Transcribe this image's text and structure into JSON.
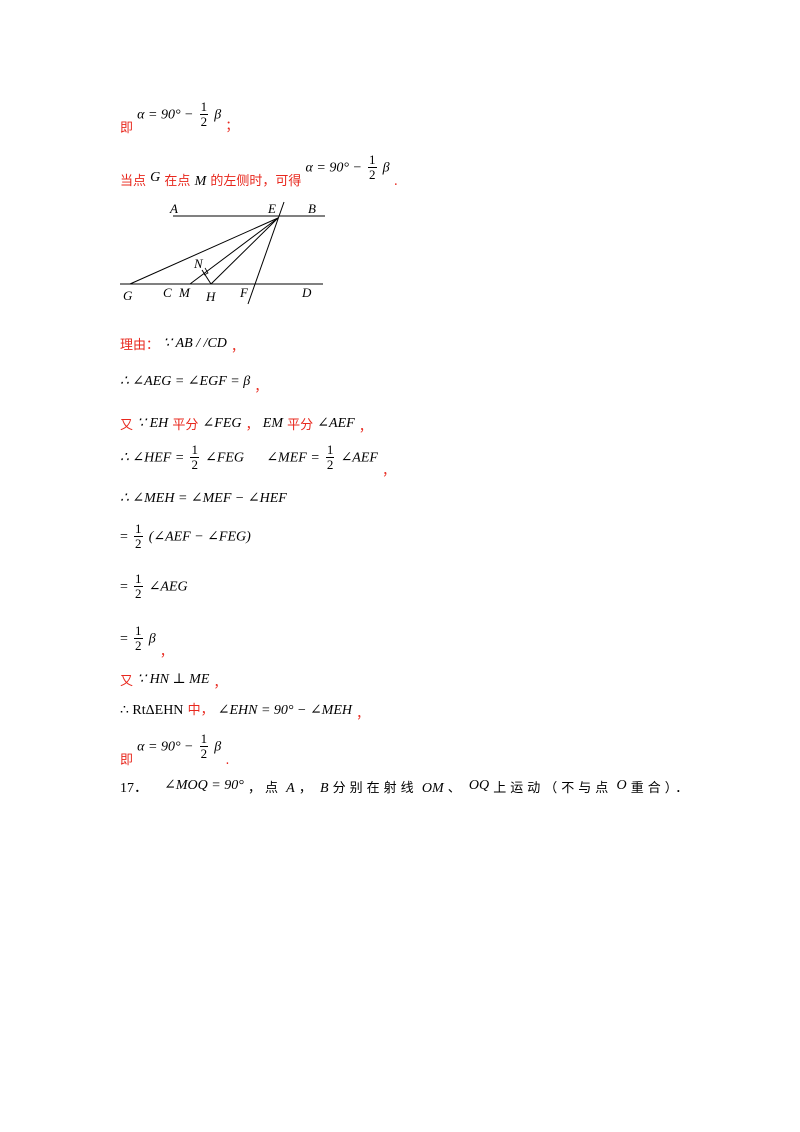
{
  "lines": {
    "l1": {
      "prefix": "即",
      "lhs": "α = 90° −",
      "num": "1",
      "den": "2",
      "var": "β",
      "suffix": "；"
    },
    "l2": {
      "t1": "当点",
      "g": "G",
      "t2": "在点",
      "m": "M",
      "t3": "的左侧时，可得",
      "lhs": "α = 90° −",
      "num": "1",
      "den": "2",
      "var": "β",
      "suffix": "."
    },
    "l3": {
      "prefix": "理由：",
      "expr": "∵ AB / /CD",
      "suffix": "，"
    },
    "l4": {
      "expr": "∴ ∠AEG = ∠EGF = β",
      "suffix": "，"
    },
    "l5": {
      "t1": "又",
      "e1": "∵ EH",
      "t2": "平分",
      "e2": "∠FEG",
      "t3": "，",
      "e3": "EM",
      "t4": "平分",
      "e4": "∠AEF",
      "t5": "，"
    },
    "l6": {
      "a": "∴ ∠HEF =",
      "n1": "1",
      "d1": "2",
      "b": "∠FEG",
      "c": "∠MEF =",
      "n2": "1",
      "d2": "2",
      "e": "∠AEF",
      "suffix": "，"
    },
    "l7": {
      "expr": "∴ ∠MEH = ∠MEF − ∠HEF"
    },
    "l8": {
      "pre": "=",
      "num": "1",
      "den": "2",
      "expr": "(∠AEF − ∠FEG)"
    },
    "l9": {
      "pre": "=",
      "num": "1",
      "den": "2",
      "expr": "∠AEG"
    },
    "l10": {
      "pre": "=",
      "num": "1",
      "den": "2",
      "expr": "β",
      "suffix": "，"
    },
    "l11": {
      "t1": "又",
      "expr": "∵ HN ⊥ ME",
      "suffix": "，"
    },
    "l12": {
      "a": "∴ RtΔEHN",
      "t": "中，",
      "b": "∠EHN = 90° − ∠MEH",
      "suffix": "，"
    },
    "l13": {
      "prefix": "即",
      "lhs": "α = 90° −",
      "num": "1",
      "den": "2",
      "var": "β",
      "suffix": "."
    },
    "l14": {
      "num": "17．",
      "e1": "∠MOQ = 90°",
      "t1": "，点",
      "a": "A",
      "t2": "，",
      "b": "B",
      "t3": "分别在射线",
      "om": "OM",
      "t4": "、",
      "oq": "OQ",
      "t5": "上运动（不与点",
      "o": "O",
      "t6": "重合）．"
    }
  },
  "figure": {
    "labels": {
      "A": "A",
      "E": "E",
      "B": "B",
      "N": "N",
      "G": "G",
      "C": "C",
      "M": "M",
      "H": "H",
      "F": "F",
      "D": "D"
    }
  }
}
